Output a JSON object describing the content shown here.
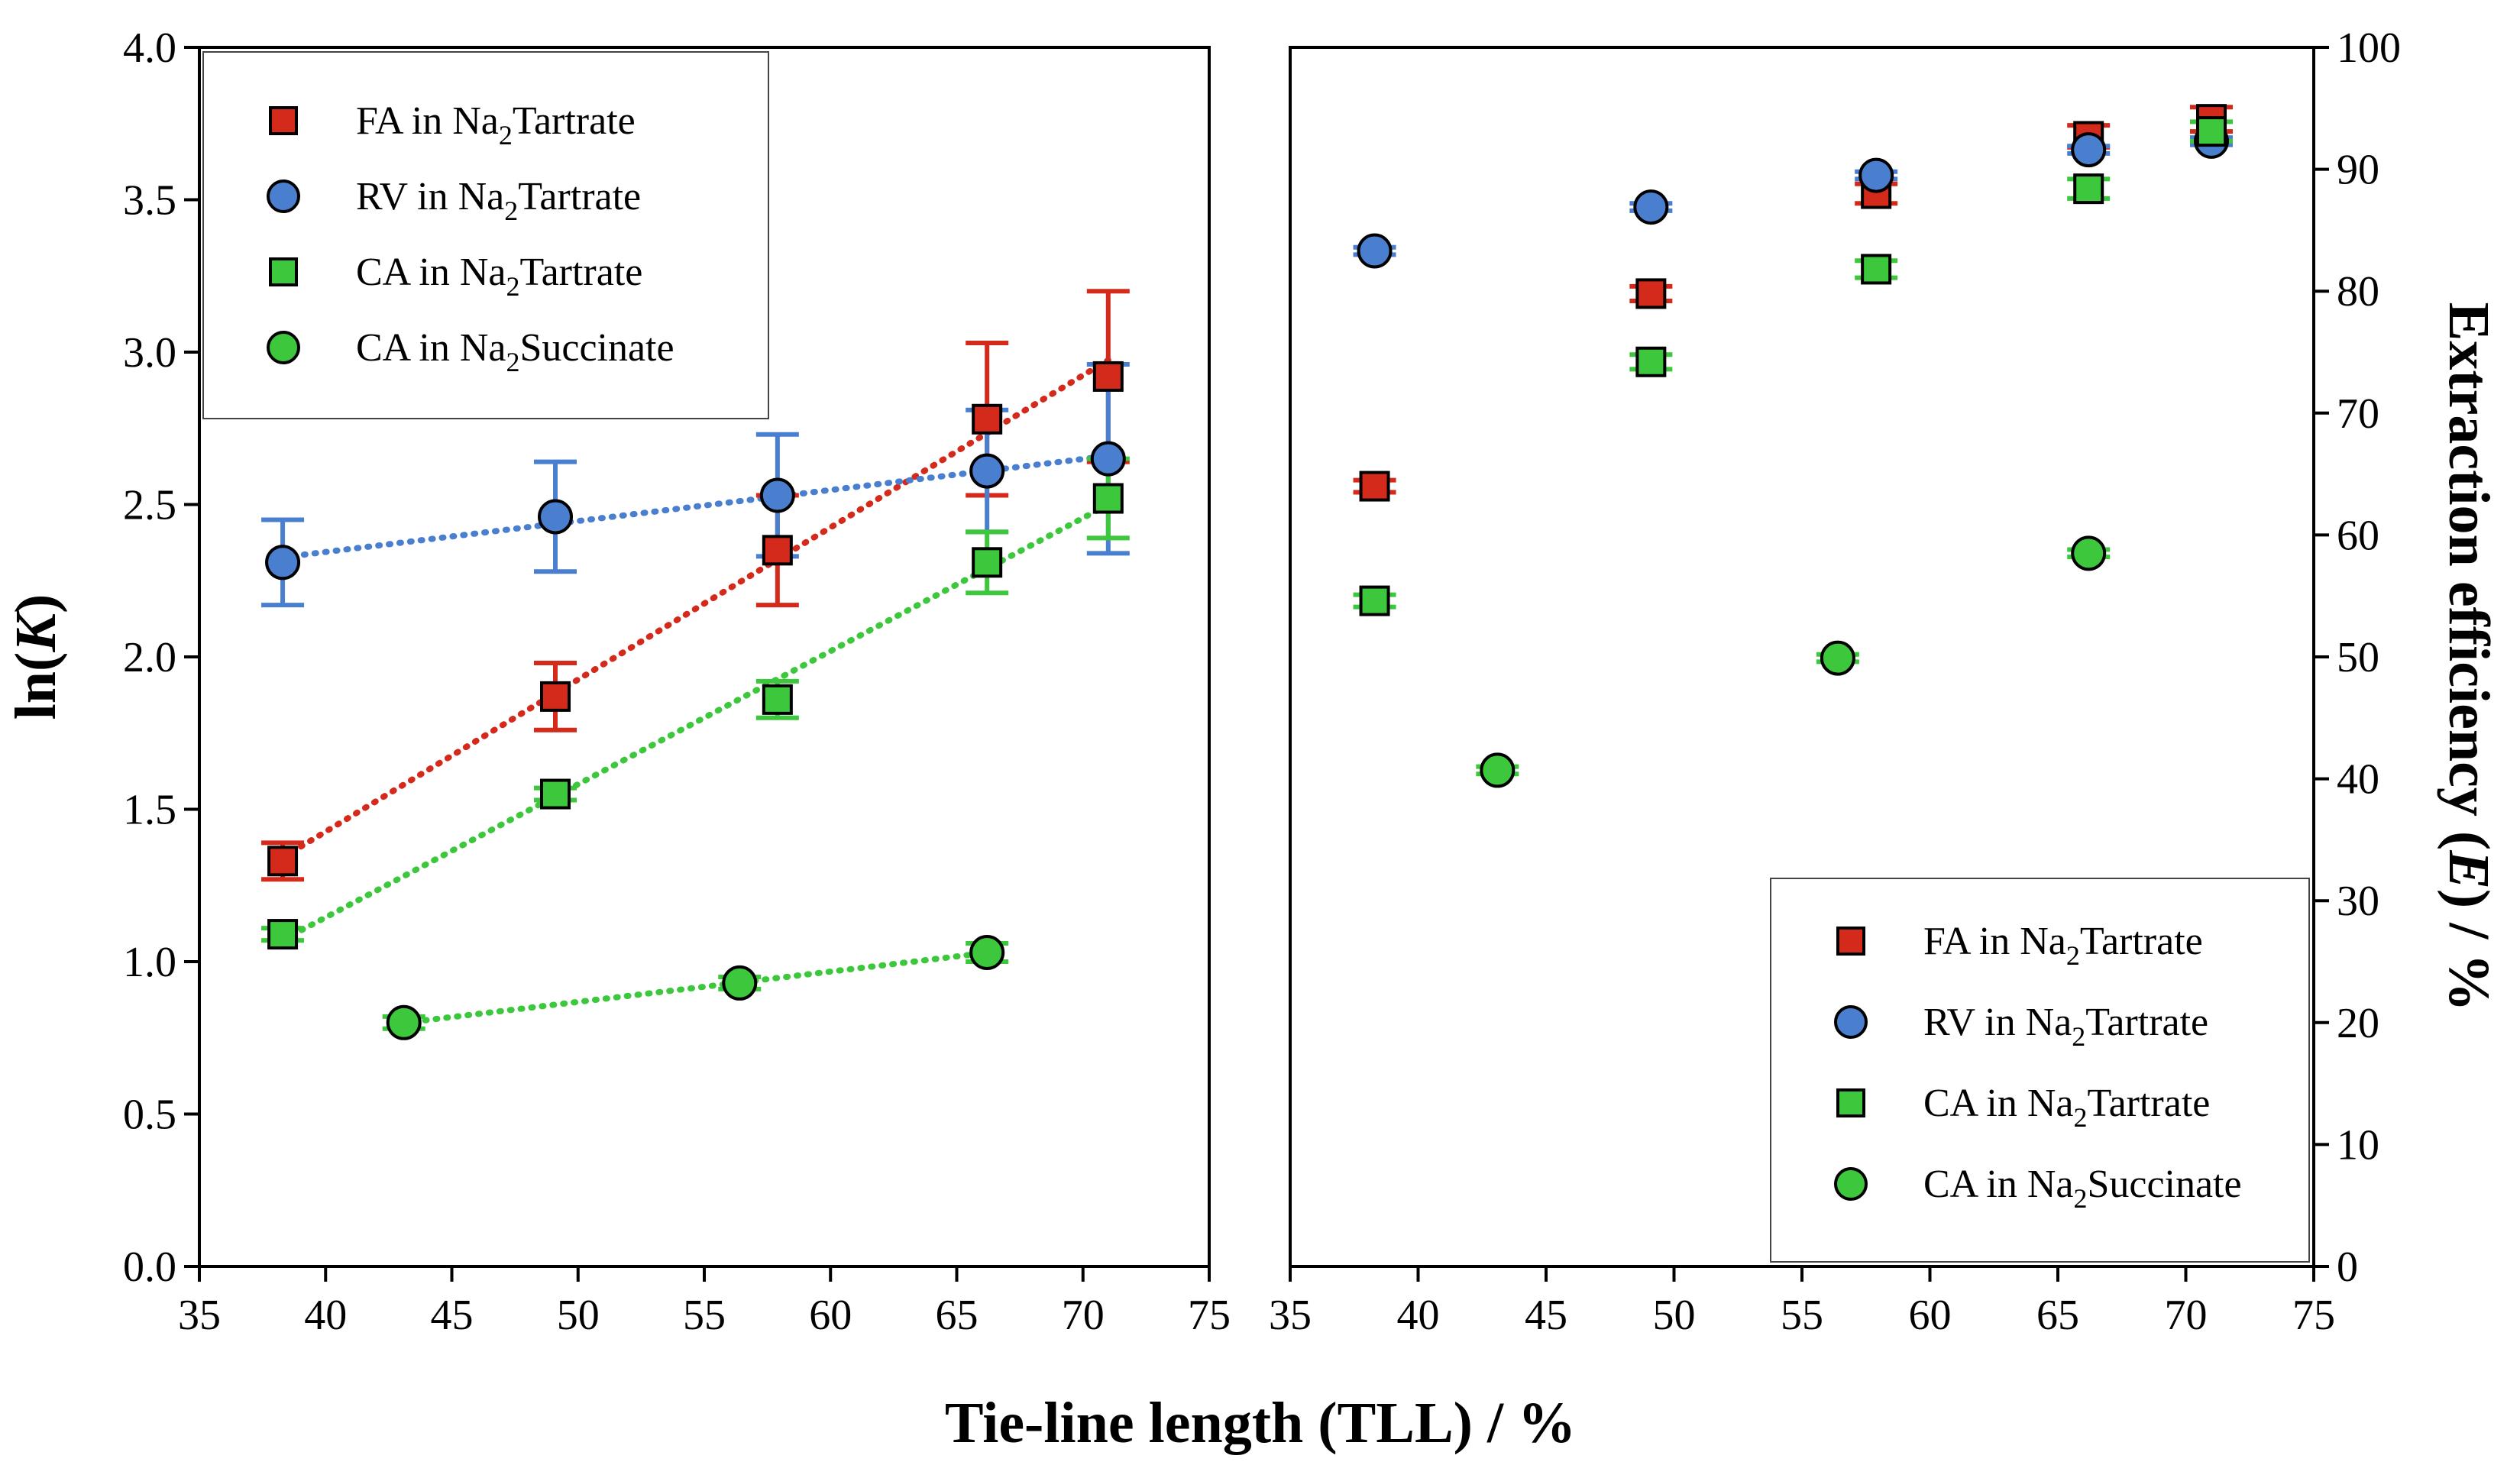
{
  "colors": {
    "FA_Tartrate": "#d42a1c",
    "RV_Tartrate": "#4a7fd0",
    "CA_Tartrate": "#3dc73d",
    "CA_Succinate": "#3dc73d",
    "err_FA": "#d42a1c",
    "err_RV": "#4a7fd0",
    "err_CA": "#3dc73d"
  },
  "chart_data": [
    {
      "type": "scatter",
      "panel": "left",
      "xlabel": "Tie-line length (TLL) / %",
      "ylabel": "ln(K)",
      "ylabel_plain": "ln(",
      "ylabel_italic": "K",
      "ylabel_close": ")",
      "xlim": [
        35,
        75
      ],
      "ylim": [
        0.0,
        4.0
      ],
      "x_ticks": [
        "35",
        "40",
        "45",
        "50",
        "55",
        "60",
        "65",
        "70",
        "75"
      ],
      "y_ticks": [
        "0.0",
        "0.5",
        "1.0",
        "1.5",
        "2.0",
        "2.5",
        "3.0",
        "3.5",
        "4.0"
      ],
      "legend_position": "top-left",
      "series": [
        {
          "key": "FA_Tartrate",
          "marker": "square",
          "trend": true,
          "name": "FA in Na2Tartrate",
          "name_main": "FA in Na",
          "name_sub": "2",
          "name_tail": "Tartrate",
          "x": [
            38.3,
            49.1,
            57.9,
            66.2,
            71.0
          ],
          "y": [
            1.33,
            1.87,
            2.35,
            2.78,
            2.92
          ],
          "err": [
            0.06,
            0.11,
            0.18,
            0.25,
            0.28
          ]
        },
        {
          "key": "RV_Tartrate",
          "marker": "circle",
          "trend": true,
          "name": "RV in Na2Tartrate",
          "name_main": "RV in Na",
          "name_sub": "2",
          "name_tail": "Tartrate",
          "x": [
            38.3,
            49.1,
            57.9,
            66.2,
            71.0
          ],
          "y": [
            2.31,
            2.46,
            2.53,
            2.61,
            2.65
          ],
          "err": [
            0.14,
            0.18,
            0.2,
            0.2,
            0.31
          ]
        },
        {
          "key": "CA_Tartrate",
          "marker": "square",
          "trend": true,
          "name": "CA in Na2Tartrate",
          "name_main": "CA in Na",
          "name_sub": "2",
          "name_tail": "Tartrate",
          "x": [
            38.3,
            49.1,
            57.9,
            66.2,
            71.0
          ],
          "y": [
            1.09,
            1.55,
            1.86,
            2.31,
            2.52
          ],
          "err": [
            0.02,
            0.02,
            0.06,
            0.1,
            0.13
          ]
        },
        {
          "key": "CA_Succinate",
          "marker": "circle",
          "trend": true,
          "name": "CA in Na2Succinate",
          "name_main": "CA in Na",
          "name_sub": "2",
          "name_tail": "Succinate",
          "x": [
            43.1,
            56.4,
            66.2
          ],
          "y": [
            0.8,
            0.93,
            1.03
          ],
          "err": [
            0.02,
            0.02,
            0.03
          ]
        }
      ]
    },
    {
      "type": "scatter",
      "panel": "right",
      "xlabel": "Tie-line length (TLL) / %",
      "ylabel": "Extraction efficiency (E) / %",
      "ylabel_plain": "Extraction efficiency (",
      "ylabel_italic": "E",
      "ylabel_close": ") / %",
      "xlim": [
        35,
        75
      ],
      "ylim": [
        0,
        100
      ],
      "x_ticks": [
        "35",
        "40",
        "45",
        "50",
        "55",
        "60",
        "65",
        "70",
        "75"
      ],
      "y_ticks": [
        "0",
        "10",
        "20",
        "30",
        "40",
        "50",
        "60",
        "70",
        "80",
        "90",
        "100"
      ],
      "legend_position": "bottom-right",
      "series": [
        {
          "key": "FA_Tartrate",
          "marker": "square",
          "trend": false,
          "name": "FA in Na2Tartrate",
          "name_main": "FA in Na",
          "name_sub": "2",
          "name_tail": "Tartrate",
          "x": [
            38.3,
            49.1,
            57.9,
            66.2,
            71.0
          ],
          "y": [
            64.0,
            79.8,
            88.0,
            92.7,
            94.1
          ],
          "err": [
            0.5,
            0.6,
            0.8,
            0.9,
            1.0
          ]
        },
        {
          "key": "RV_Tartrate",
          "marker": "circle",
          "trend": false,
          "name": "RV in Na2Tartrate",
          "name_main": "RV in Na",
          "name_sub": "2",
          "name_tail": "Tartrate",
          "x": [
            38.3,
            49.1,
            57.9,
            66.2,
            71.0
          ],
          "y": [
            83.3,
            86.9,
            89.5,
            91.6,
            92.3
          ],
          "err": [
            0.3,
            0.3,
            0.3,
            0.3,
            0.3
          ]
        },
        {
          "key": "CA_Tartrate",
          "marker": "square",
          "trend": false,
          "name": "CA in Na2Tartrate",
          "name_main": "CA in Na",
          "name_sub": "2",
          "name_tail": "Tartrate",
          "x": [
            38.3,
            49.1,
            57.9,
            66.2,
            71.0
          ],
          "y": [
            54.6,
            74.2,
            81.8,
            88.4,
            93.1
          ],
          "err": [
            0.5,
            0.6,
            0.7,
            0.8,
            0.8
          ]
        },
        {
          "key": "CA_Succinate",
          "marker": "circle",
          "trend": false,
          "name": "CA in Na2Succinate",
          "name_main": "CA in Na",
          "name_sub": "2",
          "name_tail": "Succinate",
          "x": [
            43.1,
            56.4,
            66.2
          ],
          "y": [
            40.7,
            49.9,
            58.5
          ],
          "err": [
            0.3,
            0.3,
            0.3
          ]
        }
      ]
    }
  ]
}
